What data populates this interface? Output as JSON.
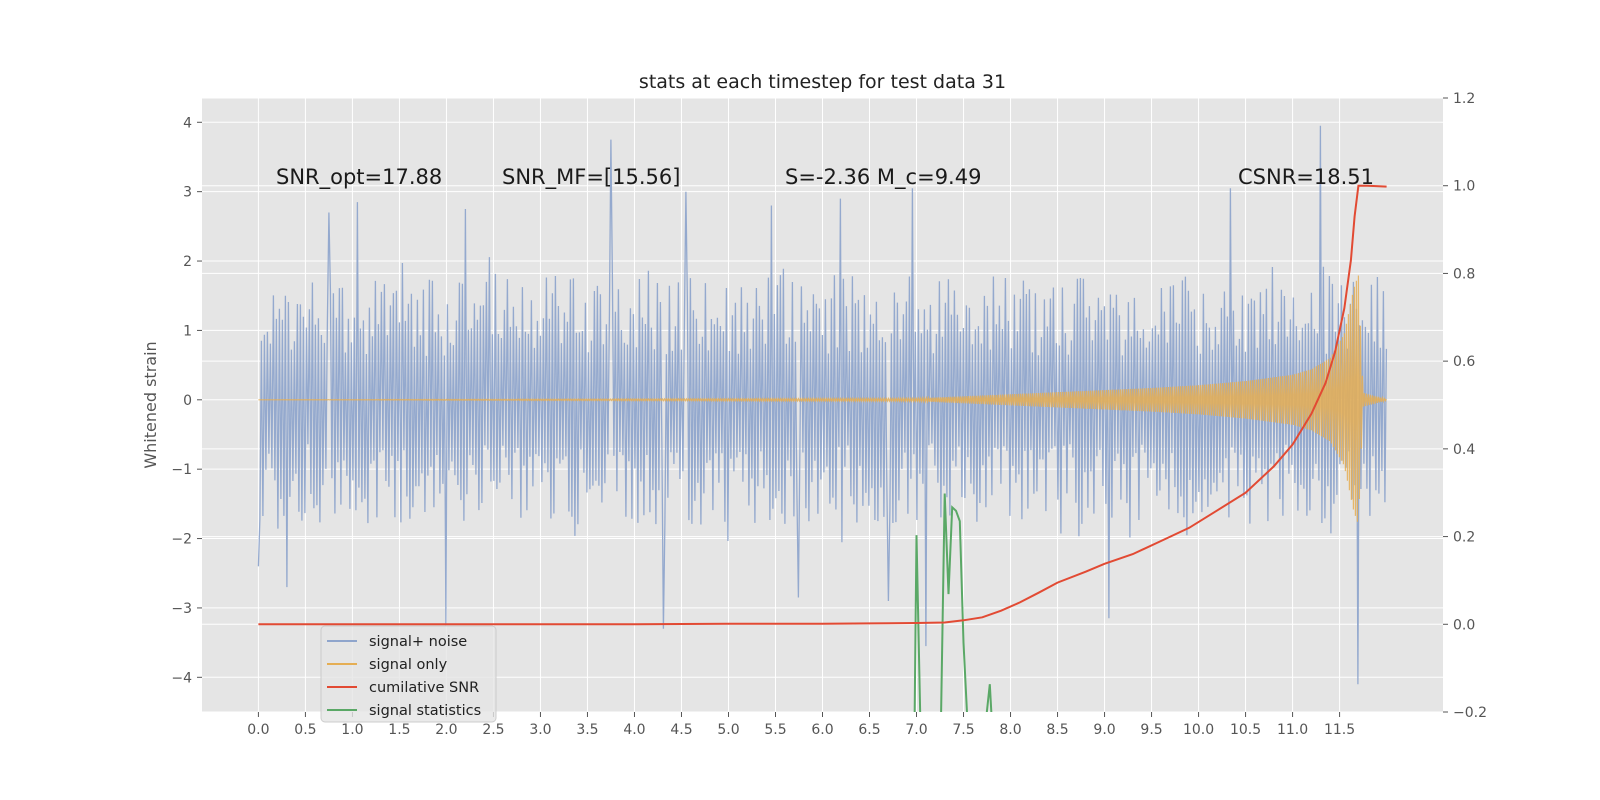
{
  "chart_data": {
    "type": "line",
    "title": "stats at each timestep for test data 31",
    "xlabel": "",
    "ylabel": "Whitened strain",
    "xlim": [
      -0.6,
      12.6
    ],
    "ylim": [
      -4.5,
      4.35
    ],
    "y2lim": [
      -0.2,
      1.2
    ],
    "x_ticks": [
      0.0,
      0.5,
      1.0,
      1.5,
      2.0,
      2.5,
      3.0,
      3.5,
      4.0,
      4.5,
      5.0,
      5.5,
      6.0,
      6.5,
      7.0,
      7.5,
      8.0,
      8.5,
      9.0,
      9.5,
      10.0,
      10.5,
      11.0,
      11.5
    ],
    "x_tick_labels": [
      "0.0",
      "0.5",
      "1.0",
      "1.5",
      "2.0",
      "2.5",
      "3.0",
      "3.5",
      "4.0",
      "4.5",
      "5.0",
      "5.5",
      "6.0",
      "6.5",
      "7.0",
      "7.5",
      "8.0",
      "8.5",
      "9.0",
      "9.5",
      "10.0",
      "10.5",
      "11.0",
      "11.5"
    ],
    "y_ticks": [
      4,
      3,
      2,
      1,
      0,
      -1,
      -2,
      -3,
      -4
    ],
    "y_tick_labels": [
      "4",
      "3",
      "2",
      "1",
      "0",
      "−1",
      "−2",
      "−3",
      "−4"
    ],
    "y2_ticks": [
      1.2,
      1.0,
      0.8,
      0.6,
      0.4,
      0.2,
      0.0,
      -0.2
    ],
    "y2_tick_labels": [
      "1.2",
      "1.0",
      "0.8",
      "0.6",
      "0.4",
      "0.2",
      "0.0",
      "−0.2"
    ],
    "grid": true,
    "legend_position": "bottom-left",
    "annotations": [
      {
        "id": "snr-opt",
        "x": 0.2,
        "y": 3.1,
        "label": "SNR_opt=17.88"
      },
      {
        "id": "snr-mf",
        "x": 2.6,
        "y": 3.1,
        "label": "SNR_MF=[15.56]"
      },
      {
        "id": "s-mc",
        "x": 5.6,
        "y": 3.1,
        "label": "S=-2.36  M_c=9.49"
      },
      {
        "id": "csnr",
        "x": 10.4,
        "y": 3.1,
        "label": "CSNR=18.51"
      }
    ],
    "series": [
      {
        "name": "signal+ noise",
        "axis": "left",
        "color": "#8fa5cc",
        "description": "whitened noisy strain, roughly ±1.8 with spikes up to about 3.8 and down to about -4.1",
        "x_range": [
          0.0,
          12.0
        ],
        "envelope": 1.8,
        "spikes": [
          {
            "x": 0.0,
            "y": -2.4
          },
          {
            "x": 0.3,
            "y": -2.7
          },
          {
            "x": 0.75,
            "y": 2.7
          },
          {
            "x": 1.05,
            "y": 2.85
          },
          {
            "x": 2.0,
            "y": -3.25
          },
          {
            "x": 2.2,
            "y": 2.75
          },
          {
            "x": 3.75,
            "y": 3.75
          },
          {
            "x": 4.3,
            "y": -3.3
          },
          {
            "x": 4.55,
            "y": 3.0
          },
          {
            "x": 5.45,
            "y": 2.8
          },
          {
            "x": 5.75,
            "y": -2.85
          },
          {
            "x": 6.2,
            "y": 2.9
          },
          {
            "x": 6.7,
            "y": -2.9
          },
          {
            "x": 6.95,
            "y": 3.05
          },
          {
            "x": 7.1,
            "y": -3.55
          },
          {
            "x": 9.05,
            "y": -3.15
          },
          {
            "x": 10.35,
            "y": 3.05
          },
          {
            "x": 11.3,
            "y": 3.95
          },
          {
            "x": 11.7,
            "y": -4.1
          }
        ]
      },
      {
        "name": "signal only",
        "axis": "left",
        "color": "#e5ae54",
        "description": "chirp whose amplitude grows from ~0 before t=7 to ~1.8 at merger near t=11.7, then ringdown",
        "envelope_x": [
          0.0,
          7.0,
          7.5,
          8.0,
          8.5,
          9.0,
          9.5,
          10.0,
          10.5,
          11.0,
          11.2,
          11.4,
          11.55,
          11.65,
          11.7,
          11.75,
          12.0
        ],
        "envelope_amp": [
          0.0,
          0.02,
          0.05,
          0.08,
          0.11,
          0.14,
          0.17,
          0.21,
          0.27,
          0.36,
          0.44,
          0.6,
          0.95,
          1.6,
          1.8,
          0.1,
          0.01
        ]
      },
      {
        "name": "cumilative SNR",
        "axis": "right",
        "color": "#e24a33",
        "x": [
          0.0,
          1.0,
          2.0,
          3.0,
          4.0,
          5.0,
          6.0,
          6.5,
          7.0,
          7.3,
          7.5,
          7.7,
          7.9,
          8.1,
          8.3,
          8.5,
          8.8,
          9.0,
          9.3,
          9.6,
          9.9,
          10.2,
          10.5,
          10.8,
          11.0,
          11.2,
          11.35,
          11.45,
          11.55,
          11.62,
          11.66,
          11.7,
          11.8,
          12.0
        ],
        "y": [
          0.0,
          0.0,
          0.0,
          0.0,
          0.0,
          0.001,
          0.001,
          0.002,
          0.003,
          0.004,
          0.009,
          0.016,
          0.031,
          0.05,
          0.072,
          0.095,
          0.12,
          0.138,
          0.16,
          0.19,
          0.22,
          0.26,
          0.3,
          0.36,
          0.41,
          0.48,
          0.55,
          0.62,
          0.72,
          0.83,
          0.93,
          1.0,
          1.0,
          0.998
        ]
      },
      {
        "name": "signal statistics",
        "axis": "left",
        "color": "#348abd",
        "draw_color": "#5aa866",
        "x": [
          6.98,
          7.0,
          7.04,
          7.08,
          7.14,
          7.2,
          7.26,
          7.3,
          7.34,
          7.38,
          7.42,
          7.46,
          7.5,
          7.54,
          7.58,
          7.62,
          7.66,
          7.7,
          7.74,
          7.78,
          7.8
        ],
        "y": [
          -4.6,
          -1.95,
          -4.6,
          -4.6,
          -4.6,
          -4.6,
          -4.6,
          -1.35,
          -2.8,
          -1.55,
          -1.6,
          -1.75,
          -3.5,
          -4.6,
          -4.6,
          -4.6,
          -4.6,
          -4.6,
          -4.6,
          -4.1,
          -4.6
        ]
      }
    ]
  }
}
